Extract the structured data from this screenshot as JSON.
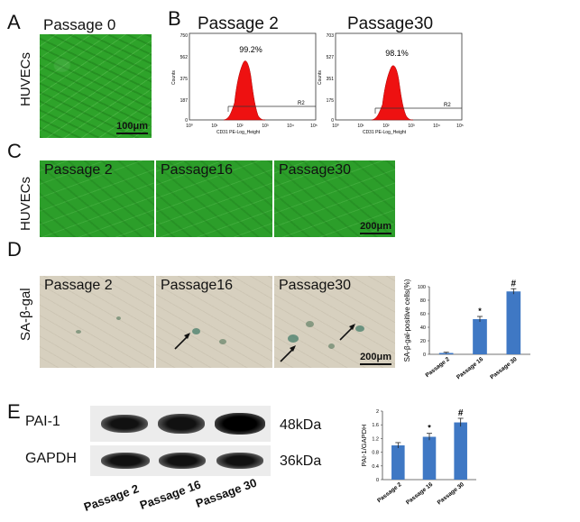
{
  "panels": {
    "A": {
      "letter": "A",
      "side_label": "HUVECs",
      "image_title": "Passage 0",
      "scale_bar": "100μm"
    },
    "B": {
      "letter": "B",
      "histograms": [
        {
          "title": "Passage 2",
          "percent": "99.2%",
          "ymax": "750",
          "yticks": [
            "750",
            "562",
            "375",
            "187",
            "0"
          ],
          "gate": "R2",
          "xlabel": "CD31 PE-Log_Height",
          "ylabel": "Counts"
        },
        {
          "title": "Passage30",
          "percent": "98.1%",
          "ymax": "703",
          "yticks": [
            "703",
            "527",
            "351",
            "175",
            "0"
          ],
          "gate": "R2",
          "xlabel": "CD31 PE-Log_Height",
          "ylabel": "Counts"
        }
      ],
      "xticks": [
        "10⁰",
        "10¹",
        "10²",
        "10³",
        "10⁴",
        "10⁵"
      ]
    },
    "C": {
      "letter": "C",
      "side_label": "HUVECs",
      "images": [
        "Passage 2",
        "Passage16",
        "Passage30"
      ],
      "scale_bar": "200μm"
    },
    "D": {
      "letter": "D",
      "side_label": "SA-β-gal",
      "images": [
        "Passage 2",
        "Passage16",
        "Passage30"
      ],
      "scale_bar": "200μm"
    },
    "E": {
      "letter": "E",
      "rows": [
        {
          "protein": "PAI-1",
          "size": "48kDa"
        },
        {
          "protein": "GAPDH",
          "size": "36kDa"
        }
      ],
      "lanes": [
        "Passage 2",
        "Passage 16",
        "Passage 30"
      ]
    }
  },
  "chart_data": [
    {
      "type": "bar",
      "ylabel": "SA-β-gal-positive cells(%)",
      "categories": [
        "Passage 2",
        "Passage 16",
        "Passage 30"
      ],
      "values": [
        2,
        52,
        93
      ],
      "errors": [
        1,
        4,
        4
      ],
      "annotations": [
        "",
        "*",
        "#"
      ],
      "yticks": [
        "0",
        "20",
        "40",
        "60",
        "80",
        "100"
      ],
      "ylim": [
        0,
        100
      ],
      "color": "#3f78c4"
    },
    {
      "type": "bar",
      "ylabel": "PAI-1/GAPDH",
      "categories": [
        "Passage 2",
        "Passage 16",
        "Passage 30"
      ],
      "values": [
        1.0,
        1.25,
        1.67
      ],
      "errors": [
        0.08,
        0.1,
        0.12
      ],
      "annotations": [
        "",
        "*",
        "#"
      ],
      "yticks": [
        "0",
        "0.4",
        "0.8",
        "1.2",
        "1.6",
        "2"
      ],
      "ylim": [
        0,
        2
      ],
      "color": "#3f78c4"
    }
  ]
}
